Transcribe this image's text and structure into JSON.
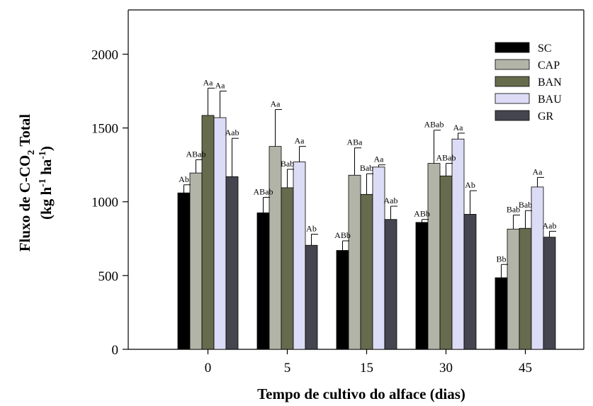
{
  "chart_data": {
    "type": "bar",
    "xlabel": "Tempo de cultivo do alface (dias)",
    "ylabel": {
      "line1_prefix": "Fluxo de C-CO",
      "line1_sub": "2",
      "line1_suffix": " Total",
      "line2_open": "(kg h",
      "line2_sup1": "-1",
      "line2_mid": " ha",
      "line2_sup2": "-1",
      "line2_close": ")"
    },
    "ylim": [
      0,
      2300
    ],
    "yticks": [
      0,
      500,
      1000,
      1500,
      2000
    ],
    "categories": [
      "0",
      "5",
      "15",
      "30",
      "45"
    ],
    "legend_position": "top-right",
    "grid": false,
    "series": [
      {
        "name": "SC",
        "color": "#000000",
        "values": [
          1060,
          925,
          670,
          860,
          485
        ],
        "errors": [
          55,
          105,
          65,
          20,
          90
        ],
        "labels": [
          "Ab",
          "ABab",
          "ABb",
          "ABb",
          "Bb"
        ]
      },
      {
        "name": "CAP",
        "color": "#b3b4a8",
        "values": [
          1195,
          1375,
          1180,
          1260,
          815
        ],
        "errors": [
          90,
          250,
          185,
          225,
          95
        ],
        "labels": [
          "ABab",
          "Aa",
          "ABa",
          "ABab",
          "Bab"
        ]
      },
      {
        "name": "BAN",
        "color": "#676b4e",
        "values": [
          1585,
          1095,
          1050,
          1175,
          820
        ],
        "errors": [
          185,
          125,
          140,
          85,
          120
        ],
        "labels": [
          "Aa",
          "Bab",
          "Bab",
          "ABab",
          "Bab"
        ]
      },
      {
        "name": "BAU",
        "color": "#dcdcf6",
        "values": [
          1570,
          1270,
          1235,
          1425,
          1100
        ],
        "errors": [
          180,
          105,
          15,
          40,
          65
        ],
        "labels": [
          "Aa",
          "Aa",
          "Aa",
          "Aa",
          "Aa"
        ]
      },
      {
        "name": "GR",
        "color": "#45454f",
        "values": [
          1170,
          705,
          880,
          915,
          760
        ],
        "errors": [
          260,
          75,
          90,
          160,
          40
        ],
        "labels": [
          "Aab",
          "Ab",
          "Aab",
          "Ab",
          "Aab"
        ]
      }
    ]
  }
}
